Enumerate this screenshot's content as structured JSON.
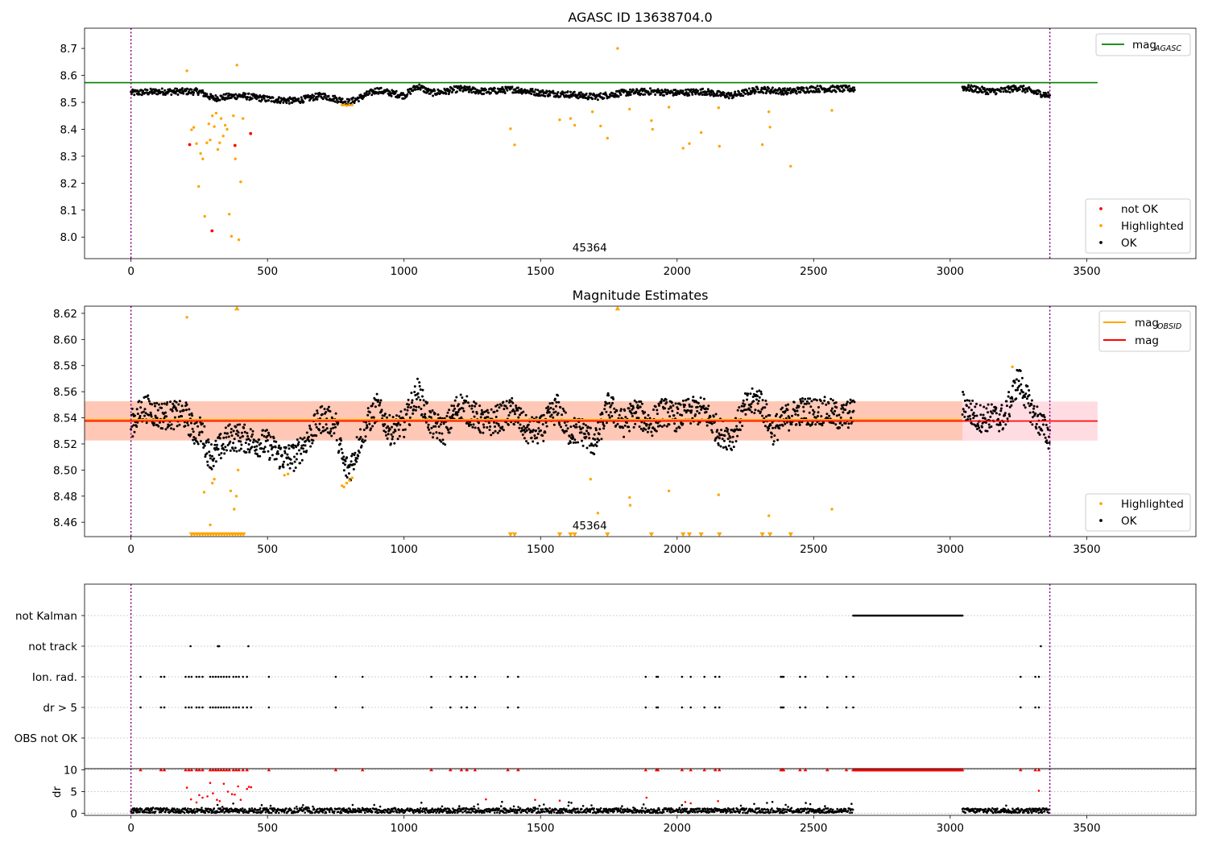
{
  "chart_data": [
    {
      "type": "scatter",
      "title": "AGASC ID 13638704.0",
      "xlabel": "",
      "ylabel": "",
      "xlim": [
        -170,
        3900
      ],
      "ylim": [
        7.92,
        8.775
      ],
      "xticks": [
        "0",
        "500",
        "1000",
        "1500",
        "2000",
        "2500",
        "3000",
        "3500"
      ],
      "yticks": [
        "8.0",
        "8.1",
        "8.2",
        "8.3",
        "8.4",
        "8.5",
        "8.6",
        "8.7"
      ],
      "annotation": "45364",
      "vlines": [
        0,
        3365
      ],
      "hline": {
        "name": "mag_AGASC",
        "value": 8.573,
        "x_range": [
          -170,
          3540
        ],
        "color": "#008000"
      },
      "legend_upper": [
        {
          "label": "mag",
          "sub": "AGASC",
          "color": "#008000"
        }
      ],
      "legend_lower": [
        {
          "label": "not OK",
          "color": "#ff0000"
        },
        {
          "label": "Highlighted",
          "color": "#ffa500"
        },
        {
          "label": "OK",
          "color": "#000000"
        }
      ],
      "series": [
        {
          "name": "OK",
          "color": "#000000",
          "segments": [
            {
              "x": [
                0,
                100,
                200,
                250,
                300,
                400,
                500,
                600,
                700,
                800,
                900,
                950,
                1000,
                1050,
                1100,
                1150,
                1200,
                1300,
                1400,
                1500,
                1600,
                1700,
                1800,
                1900,
                2000,
                2100,
                2150,
                2200,
                2300,
                2400,
                2500,
                2650
              ],
              "y": [
                8.535,
                8.54,
                8.54,
                8.54,
                8.515,
                8.525,
                8.512,
                8.505,
                8.525,
                8.5,
                8.545,
                8.535,
                8.525,
                8.56,
                8.535,
                8.54,
                8.55,
                8.54,
                8.548,
                8.535,
                8.53,
                8.52,
                8.535,
                8.54,
                8.535,
                8.54,
                8.53,
                8.525,
                8.548,
                8.54,
                8.55,
                8.55
              ]
            },
            {
              "x": [
                3045,
                3100,
                3150,
                3200,
                3250,
                3300,
                3365
              ],
              "y": [
                8.555,
                8.548,
                8.54,
                8.545,
                8.555,
                8.54,
                8.525
              ]
            }
          ]
        },
        {
          "name": "Highlighted",
          "color": "#ffa500",
          "x": [
            205,
            222,
            230,
            240,
            248,
            255,
            263,
            270,
            278,
            285,
            290,
            298,
            305,
            312,
            318,
            325,
            330,
            338,
            345,
            352,
            360,
            368,
            375,
            382,
            388,
            395,
            402,
            410,
            1390,
            1405,
            1570,
            1610,
            1625,
            1690,
            1720,
            1745,
            1782,
            1826,
            1906,
            1910,
            1970,
            2022,
            2045,
            2088,
            2152,
            2155,
            2312,
            2336,
            2340,
            2416,
            2567,
            773,
            780,
            790,
            800,
            810
          ],
          "y": [
            8.617,
            8.398,
            8.407,
            8.347,
            8.188,
            8.31,
            8.29,
            8.077,
            8.35,
            8.42,
            8.36,
            8.45,
            8.41,
            8.46,
            8.325,
            8.35,
            8.44,
            8.375,
            8.415,
            8.4,
            8.085,
            8.003,
            8.45,
            8.29,
            8.638,
            7.99,
            8.205,
            8.44,
            8.402,
            8.342,
            8.435,
            8.44,
            8.415,
            8.465,
            8.412,
            8.367,
            8.7,
            8.475,
            8.432,
            8.4,
            8.482,
            8.33,
            8.347,
            8.388,
            8.48,
            8.337,
            8.343,
            8.465,
            8.408,
            8.263,
            8.47,
            8.49,
            8.49,
            8.488,
            8.49,
            8.49
          ]
        },
        {
          "name": "not OK",
          "color": "#ff0000",
          "x": [
            215,
            297,
            381,
            438
          ],
          "y": [
            8.343,
            8.023,
            8.34,
            8.384
          ]
        }
      ]
    },
    {
      "type": "scatter",
      "title": "Magnitude Estimates",
      "xlabel": "",
      "ylabel": "",
      "xlim": [
        -170,
        3900
      ],
      "ylim": [
        8.449,
        8.6255
      ],
      "xticks": [
        "0",
        "500",
        "1000",
        "1500",
        "2000",
        "2500",
        "3000",
        "3500"
      ],
      "yticks": [
        "8.46",
        "8.48",
        "8.50",
        "8.52",
        "8.54",
        "8.56",
        "8.58",
        "8.60",
        "8.62"
      ],
      "annotation": "45364",
      "vlines": [
        0,
        3365
      ],
      "mag": {
        "value": 8.5375,
        "band": [
          8.5225,
          8.5525
        ],
        "x_range": [
          -170,
          3540
        ],
        "color": "#ff0000"
      },
      "mag_obsid": {
        "value": 8.5385,
        "band": [
          8.5228,
          8.5528
        ],
        "x_range": [
          -170,
          3045
        ],
        "color": "#ffa500"
      },
      "legend_upper": [
        {
          "label": "mag",
          "sub": "OBSID",
          "color": "#ffa500"
        },
        {
          "label": "mag",
          "sub": "",
          "color": "#ff0000"
        }
      ],
      "legend_lower": [
        {
          "label": "Highlighted",
          "color": "#ffa500"
        },
        {
          "label": "OK",
          "color": "#000000"
        }
      ],
      "series": [
        {
          "name": "OK",
          "color": "#000000",
          "segments": [
            {
              "x": [
                0,
                50,
                100,
                150,
                200,
                230,
                260,
                280,
                300,
                330,
                360,
                400,
                450,
                500,
                550,
                600,
                650,
                700,
                750,
                780,
                800,
                850,
                900,
                950,
                1000,
                1050,
                1100,
                1150,
                1200,
                1250,
                1300,
                1350,
                1400,
                1450,
                1500,
                1560,
                1600,
                1650,
                1700,
                1750,
                1800,
                1850,
                1900,
                1950,
                2000,
                2050,
                2100,
                2150,
                2200,
                2250,
                2300,
                2350,
                2400,
                2450,
                2500,
                2550,
                2600,
                2650
              ],
              "y": [
                8.535,
                8.548,
                8.542,
                8.542,
                8.542,
                8.53,
                8.53,
                8.515,
                8.51,
                8.518,
                8.525,
                8.525,
                8.522,
                8.52,
                8.51,
                8.51,
                8.525,
                8.54,
                8.535,
                8.503,
                8.5,
                8.53,
                8.548,
                8.53,
                8.535,
                8.56,
                8.535,
                8.53,
                8.55,
                8.543,
                8.535,
                8.54,
                8.545,
                8.53,
                8.53,
                8.548,
                8.53,
                8.53,
                8.52,
                8.55,
                8.535,
                8.545,
                8.535,
                8.545,
                8.54,
                8.545,
                8.545,
                8.53,
                8.525,
                8.548,
                8.555,
                8.53,
                8.54,
                8.545,
                8.545,
                8.545,
                8.54,
                8.545
              ]
            },
            {
              "x": [
                3045,
                3100,
                3150,
                3200,
                3250,
                3300,
                3365
              ],
              "y": [
                8.55,
                8.54,
                8.54,
                8.54,
                8.57,
                8.545,
                8.525
              ]
            }
          ]
        },
        {
          "name": "Highlighted",
          "color": "#ffa500",
          "x": [
            205,
            268,
            290,
            298,
            305,
            365,
            378,
            386,
            392,
            562,
            575,
            773,
            780,
            790,
            800,
            810,
            1683,
            1710,
            1826,
            1828,
            1970,
            2152,
            2336,
            2567,
            3228
          ],
          "y": [
            8.617,
            8.483,
            8.458,
            8.49,
            8.493,
            8.484,
            8.47,
            8.48,
            8.5,
            8.496,
            8.497,
            8.488,
            8.487,
            8.49,
            8.492,
            8.494,
            8.493,
            8.467,
            8.479,
            8.473,
            8.484,
            8.481,
            8.465,
            8.47,
            8.579
          ]
        },
        {
          "name": "Highlighted (below range)",
          "color": "#ffa500",
          "marker": "down-triangle",
          "x": [
            222,
            232,
            242,
            252,
            262,
            272,
            282,
            292,
            302,
            312,
            322,
            332,
            342,
            352,
            362,
            372,
            382,
            392,
            402,
            412,
            1390,
            1405,
            1570,
            1610,
            1625,
            1745,
            1906,
            2022,
            2045,
            2088,
            2155,
            2312,
            2340,
            2416
          ],
          "y": [
            8.449,
            8.449,
            8.449,
            8.449,
            8.449,
            8.449,
            8.449,
            8.449,
            8.449,
            8.449,
            8.449,
            8.449,
            8.449,
            8.449,
            8.449,
            8.449,
            8.449,
            8.449,
            8.449,
            8.449,
            8.449,
            8.449,
            8.449,
            8.449,
            8.449,
            8.449,
            8.449,
            8.449,
            8.449,
            8.449,
            8.449,
            8.449,
            8.449,
            8.449
          ]
        },
        {
          "name": "Highlighted (above range)",
          "color": "#ffa500",
          "marker": "up-triangle",
          "x": [
            388,
            1782
          ],
          "y": [
            8.6255,
            8.6255
          ]
        }
      ]
    },
    {
      "type": "scatter",
      "title": "",
      "xlabel": "",
      "ylabel": "",
      "xlim": [
        -170,
        3900
      ],
      "categories": [
        "not Kalman",
        "not track",
        "Ion. rad.",
        "dr > 5",
        "OBS not OK"
      ],
      "xticks": [
        "0",
        "500",
        "1000",
        "1500",
        "2000",
        "2500",
        "3000",
        "3500"
      ],
      "vlines": [
        0,
        3365
      ],
      "flags": {
        "not Kalman": {
          "ranges": [
            [
              2645,
              3045
            ]
          ],
          "points": []
        },
        "not track": {
          "ranges": [],
          "points": [
            218,
            318,
            320,
            323,
            430,
            3332
          ]
        },
        "Ion. rad.": {
          "ranges": [],
          "points": [
            35,
            110,
            122,
            200,
            212,
            222,
            240,
            250,
            262,
            290,
            300,
            310,
            320,
            330,
            340,
            350,
            360,
            375,
            385,
            395,
            410,
            425,
            505,
            750,
            848,
            1100,
            1170,
            1210,
            1230,
            1260,
            1380,
            1418,
            1885,
            1925,
            1930,
            2018,
            2050,
            2100,
            2140,
            2155,
            2380,
            2385,
            2390,
            2450,
            2470,
            2550,
            2620,
            2645,
            3258,
            3312,
            3325
          ]
        },
        "dr > 5": {
          "ranges": [],
          "points": [
            35,
            110,
            122,
            200,
            212,
            222,
            240,
            250,
            262,
            290,
            300,
            310,
            320,
            330,
            340,
            350,
            360,
            375,
            385,
            395,
            410,
            425,
            440,
            505,
            750,
            848,
            1100,
            1170,
            1210,
            1230,
            1260,
            1380,
            1418,
            1885,
            1925,
            1930,
            2018,
            2050,
            2100,
            2140,
            2155,
            2380,
            2385,
            2390,
            2450,
            2470,
            2550,
            2620,
            2645,
            3258,
            3312,
            3325
          ]
        },
        "OBS not OK": {
          "ranges": [],
          "points": []
        }
      }
    },
    {
      "type": "scatter",
      "title": "",
      "xlabel": "",
      "ylabel": "dr",
      "xlim": [
        -170,
        3900
      ],
      "ylim": [
        -0.5,
        10.3
      ],
      "xticks": [
        "0",
        "500",
        "1000",
        "1500",
        "2000",
        "2500",
        "3000",
        "3500"
      ],
      "yticks": [
        "0",
        "5",
        "10"
      ],
      "vlines": [
        0,
        3365
      ],
      "series": [
        {
          "name": "dr",
          "color": "#000000",
          "segments": [
            [
              0,
              2645
            ],
            [
              3045,
              3365
            ]
          ],
          "typical": 0.6
        },
        {
          "name": "dr (flagged)",
          "color": "#ff0000",
          "x": [
            205,
            220,
            240,
            250,
            262,
            280,
            290,
            300,
            315,
            325,
            340,
            355,
            370,
            380,
            392,
            402,
            425,
            432,
            440,
            1300,
            1480,
            1570,
            1888,
            2030,
            2050,
            2150,
            3325
          ],
          "y": [
            5.9,
            3.2,
            2.5,
            4.2,
            3.6,
            3.9,
            7.0,
            4.6,
            3.1,
            2.8,
            6.8,
            5.0,
            4.4,
            4.3,
            6.2,
            3.1,
            5.6,
            6.1,
            6.0,
            3.2,
            3.1,
            2.9,
            3.6,
            2.6,
            2.3,
            2.8,
            5.2
          ]
        },
        {
          "name": "dr (above range)",
          "color": "#ff0000",
          "marker": "up-triangle",
          "x": [
            35,
            110,
            122,
            200,
            212,
            222,
            240,
            250,
            262,
            290,
            300,
            310,
            320,
            330,
            340,
            350,
            360,
            375,
            385,
            395,
            410,
            425,
            505,
            750,
            848,
            1100,
            1170,
            1210,
            1230,
            1260,
            1380,
            1418,
            1885,
            1925,
            1930,
            2018,
            2050,
            2100,
            2140,
            2155,
            2380,
            2385,
            2390,
            2450,
            2470,
            2550,
            2620,
            3258,
            3312,
            3325
          ],
          "y": [
            10,
            10,
            10,
            10,
            10,
            10,
            10,
            10,
            10,
            10,
            10,
            10,
            10,
            10,
            10,
            10,
            10,
            10,
            10,
            10,
            10,
            10,
            10,
            10,
            10,
            10,
            10,
            10,
            10,
            10,
            10,
            10,
            10,
            10,
            10,
            10,
            10,
            10,
            10,
            10,
            10,
            10,
            10,
            10,
            10,
            10,
            10,
            10,
            10,
            10
          ],
          "ranges": [
            [
              2645,
              3045
            ]
          ]
        }
      ]
    }
  ]
}
